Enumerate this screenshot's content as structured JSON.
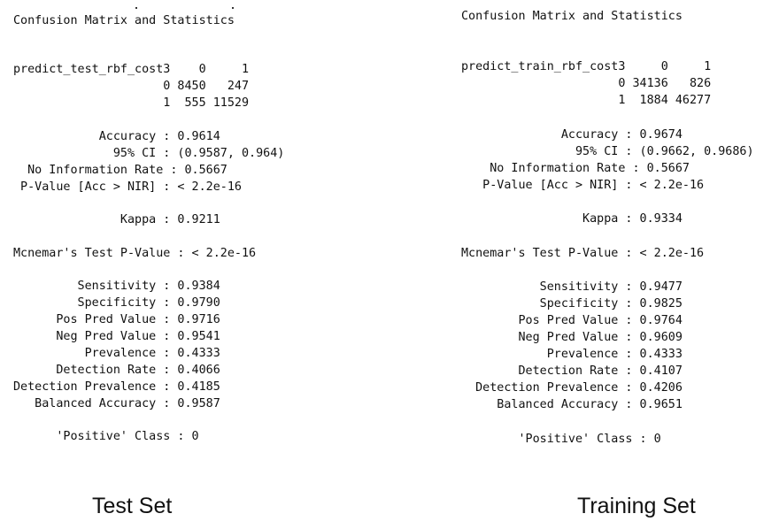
{
  "test": {
    "title": "Confusion Matrix and Statistics",
    "table": [
      "predict_test_rbf_cost3    0     1",
      "                     0 8450   247",
      "                     1  555 11529"
    ],
    "stats_a": [
      "            Accuracy : 0.9614",
      "              95% CI : (0.9587, 0.964)",
      "  No Information Rate : 0.5667",
      " P-Value [Acc > NIR] : < 2.2e-16"
    ],
    "kappa": "               Kappa : 0.9211",
    "mcnemar": "Mcnemar's Test P-Value : < 2.2e-16",
    "stats_b": [
      "         Sensitivity : 0.9384",
      "         Specificity : 0.9790",
      "      Pos Pred Value : 0.9716",
      "      Neg Pred Value : 0.9541",
      "          Prevalence : 0.4333",
      "      Detection Rate : 0.4066",
      "Detection Prevalence : 0.4185",
      "   Balanced Accuracy : 0.9587"
    ],
    "positive": "      'Positive' Class : 0",
    "caption": "Test Set"
  },
  "train": {
    "title": "Confusion Matrix and Statistics",
    "table": [
      "predict_train_rbf_cost3     0     1",
      "                      0 34136   826",
      "                      1  1884 46277"
    ],
    "stats_a": [
      "              Accuracy : 0.9674",
      "                95% CI : (0.9662, 0.9686)",
      "    No Information Rate : 0.5667",
      "   P-Value [Acc > NIR] : < 2.2e-16"
    ],
    "kappa": "                 Kappa : 0.9334",
    "mcnemar": "Mcnemar's Test P-Value : < 2.2e-16",
    "stats_b": [
      "           Sensitivity : 0.9477",
      "           Specificity : 0.9825",
      "        Pos Pred Value : 0.9764",
      "        Neg Pred Value : 0.9609",
      "            Prevalence : 0.4333",
      "        Detection Rate : 0.4107",
      "  Detection Prevalence : 0.4206",
      "     Balanced Accuracy : 0.9651"
    ],
    "positive": "        'Positive' Class : 0",
    "caption": "Training Set"
  }
}
